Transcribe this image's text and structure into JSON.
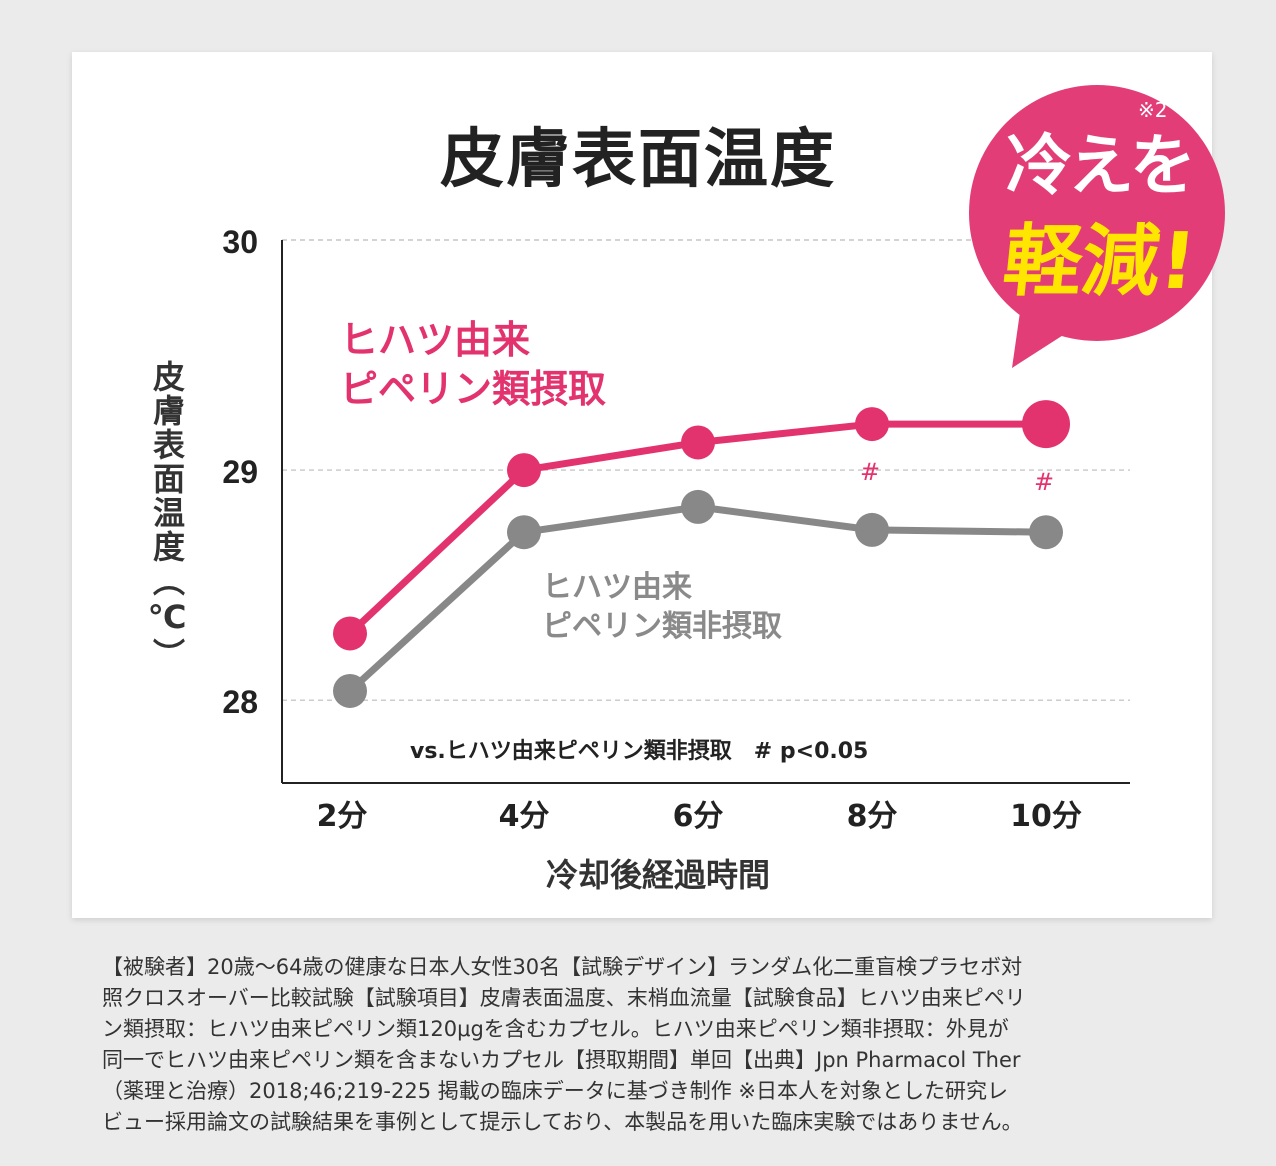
{
  "chart_data": {
    "type": "line",
    "title": "皮膚表面温度",
    "xlabel": "冷却後経過時間",
    "ylabel": "皮膚表面温度（℃）",
    "categories": [
      "2分",
      "4分",
      "6分",
      "8分",
      "10分"
    ],
    "yticks": [
      "28",
      "29",
      "30"
    ],
    "ylim": [
      27.64,
      30
    ],
    "grid": true,
    "series": [
      {
        "name": "ヒハツ由来ピペリン類摂取",
        "name_lines": [
          "ヒハツ由来",
          "ピペリン類摂取"
        ],
        "color": "#e3336f",
        "values": [
          28.29,
          29.0,
          29.12,
          29.2,
          29.2
        ]
      },
      {
        "name": "ヒハツ由来ピペリン類非摂取",
        "name_lines": [
          "ヒハツ由来",
          "ピペリン類非摂取"
        ],
        "color": "#888888",
        "values": [
          28.04,
          28.73,
          28.84,
          28.74,
          28.73
        ]
      }
    ],
    "significance_marks": [
      {
        "category": "8分",
        "label": "#"
      },
      {
        "category": "10分",
        "label": "#"
      }
    ],
    "note": "vs.ヒハツ由来ピペリン類非摂取　# p<0.05"
  },
  "badge": {
    "line1": "冷えを",
    "ref": "※2",
    "line2": "軽減!",
    "color": "#e33d78",
    "accent": "#ffe600"
  },
  "footnote": [
    "【被験者】20歳～64歳の健康な日本人女性30名【試験デザイン】ランダム化二重盲検プラセボ対",
    "照クロスオーバー比較試験【試験項目】皮膚表面温度、末梢血流量【試験食品】ヒハツ由来ピペリ",
    "ン類摂取：ヒハツ由来ピペリン類120μgを含むカプセル。ヒハツ由来ピペリン類非摂取：外見が",
    "同一でヒハツ由来ピペリン類を含まないカプセル【摂取期間】単回【出典】Jpn Pharmacol Ther",
    "（薬理と治療）2018;46;219-225 掲載の臨床データに基づき制作 ※日本人を対象とした研究レ",
    "ビュー採用論文の試験結果を事例として提示しており、本製品を用いた臨床実験ではありません。"
  ]
}
